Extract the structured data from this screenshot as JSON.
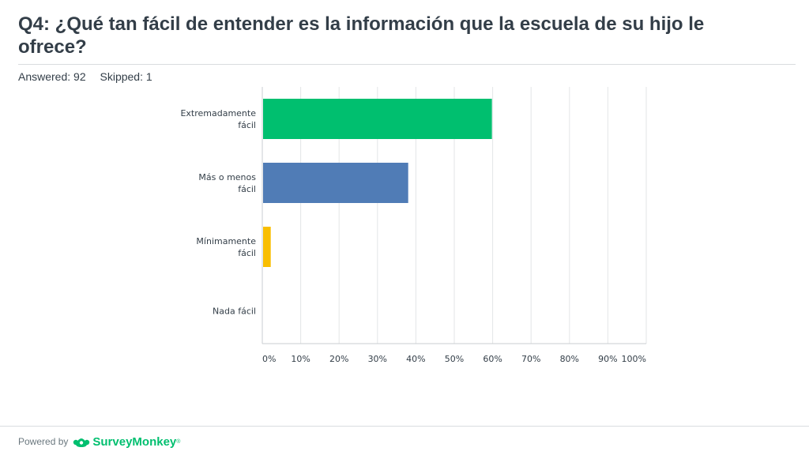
{
  "header": {
    "title": "Q4: ¿Qué tan fácil de entender es la información que la escuela de su hijo le ofrece?",
    "answered": "Answered: 92",
    "skipped": "Skipped: 1"
  },
  "footer": {
    "powered_by": "Powered by",
    "brand": "SurveyMonkey",
    "brand_mark": "®",
    "brand_icon": "surveymonkey-logo-icon"
  },
  "chart_data": {
    "type": "bar",
    "orientation": "horizontal",
    "categories": [
      [
        "Extremadamente",
        "fácil"
      ],
      [
        "Más o menos",
        "fácil"
      ],
      [
        "Mínimamente",
        "fácil"
      ],
      [
        "Nada fácil"
      ]
    ],
    "values": [
      59.8,
      38.0,
      2.2,
      0
    ],
    "colors": [
      "#00bf6f",
      "#507cb6",
      "#f9be00",
      "#6bc8cd"
    ],
    "xlim": [
      0,
      100
    ],
    "ticks": [
      "0%",
      "10%",
      "20%",
      "30%",
      "40%",
      "50%",
      "60%",
      "70%",
      "80%",
      "90%",
      "100%"
    ],
    "grid": true
  }
}
